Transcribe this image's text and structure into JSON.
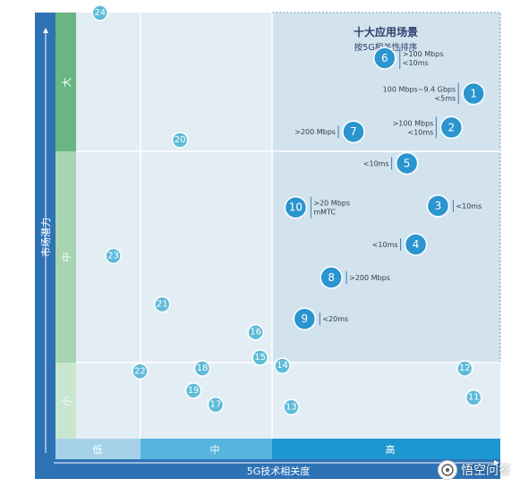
{
  "chart_data": {
    "type": "scatter",
    "title": "十大应用场景",
    "subtitle": "按5G相关性排序",
    "xlabel": "5G技术相关度",
    "ylabel": "市场潜力",
    "x_bands": [
      "低",
      "中",
      "高"
    ],
    "y_bands": [
      "大",
      "中",
      "小"
    ],
    "points": [
      {
        "id": "1",
        "x": 0.94,
        "y": 0.876,
        "highlight": true,
        "ann": [
          "100 Mbps~9.4 Gbps",
          "<5ms"
        ],
        "ann_side": "left"
      },
      {
        "id": "2",
        "x": 0.89,
        "y": 0.79,
        "highlight": true,
        "ann": [
          ">100 Mbps",
          "<10ms"
        ],
        "ann_side": "left"
      },
      {
        "id": "3",
        "x": 0.86,
        "y": 0.591,
        "highlight": true,
        "ann": [
          "<10ms"
        ],
        "ann_side": "right"
      },
      {
        "id": "4",
        "x": 0.81,
        "y": 0.493,
        "highlight": true,
        "ann": [
          "<10ms"
        ],
        "ann_side": "left"
      },
      {
        "id": "5",
        "x": 0.79,
        "y": 0.699,
        "highlight": true,
        "ann": [
          "<10ms"
        ],
        "ann_side": "left"
      },
      {
        "id": "6",
        "x": 0.74,
        "y": 0.966,
        "highlight": true,
        "ann": [
          ">100 Mbps",
          "<10ms"
        ],
        "ann_side": "right"
      },
      {
        "id": "7",
        "x": 0.67,
        "y": 0.779,
        "highlight": true,
        "ann": [
          ">200 Mbps"
        ],
        "ann_side": "left"
      },
      {
        "id": "8",
        "x": 0.62,
        "y": 0.409,
        "highlight": true,
        "ann": [
          ">200 Mbps"
        ],
        "ann_side": "right"
      },
      {
        "id": "9",
        "x": 0.56,
        "y": 0.304,
        "highlight": true,
        "ann": [
          "<20ms"
        ],
        "ann_side": "right"
      },
      {
        "id": "10",
        "x": 0.54,
        "y": 0.587,
        "highlight": true,
        "ann": [
          ">20 Mbps",
          "mMTC"
        ],
        "ann_side": "right"
      },
      {
        "id": "11",
        "x": 0.94,
        "y": 0.104,
        "highlight": false
      },
      {
        "id": "12",
        "x": 0.92,
        "y": 0.178,
        "highlight": false
      },
      {
        "id": "13",
        "x": 0.53,
        "y": 0.08,
        "highlight": false
      },
      {
        "id": "14",
        "x": 0.51,
        "y": 0.185,
        "highlight": false
      },
      {
        "id": "15",
        "x": 0.46,
        "y": 0.206,
        "highlight": false
      },
      {
        "id": "16",
        "x": 0.45,
        "y": 0.27,
        "highlight": false
      },
      {
        "id": "17",
        "x": 0.36,
        "y": 0.086,
        "highlight": false
      },
      {
        "id": "18",
        "x": 0.33,
        "y": 0.178,
        "highlight": false
      },
      {
        "id": "19",
        "x": 0.31,
        "y": 0.122,
        "highlight": false
      },
      {
        "id": "20",
        "x": 0.28,
        "y": 0.758,
        "highlight": false
      },
      {
        "id": "21",
        "x": 0.24,
        "y": 0.341,
        "highlight": false
      },
      {
        "id": "22",
        "x": 0.19,
        "y": 0.171,
        "highlight": false
      },
      {
        "id": "23",
        "x": 0.13,
        "y": 0.464,
        "highlight": false
      },
      {
        "id": "24",
        "x": 0.1,
        "y": 1.081,
        "highlight": false
      }
    ]
  },
  "watermark": "悟空问答"
}
